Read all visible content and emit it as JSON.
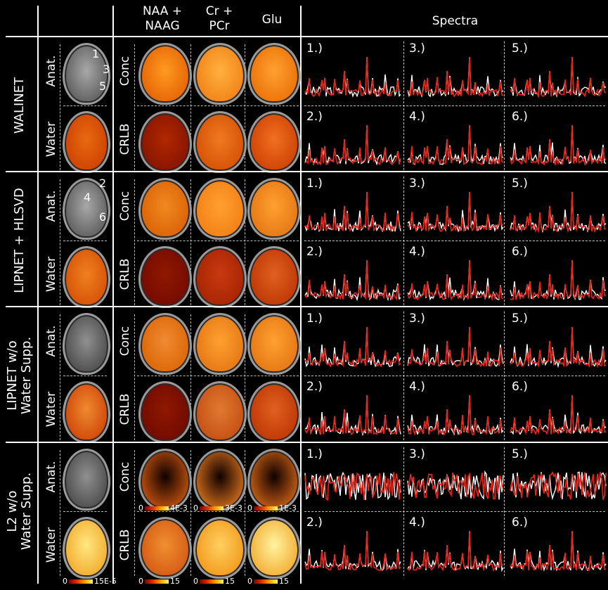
{
  "header": {
    "metabolites": [
      "NAA +\nNAAG",
      "Cr +\nPCr",
      "Glu"
    ],
    "spectra": "Spectra"
  },
  "rows": [
    {
      "name": "WALINET",
      "anat": "Anat.",
      "water": "Water",
      "conc": "Conc",
      "crlb": "CRLB",
      "markers": [
        "1",
        "3",
        "5"
      ],
      "spectra": [
        "1.)",
        "3.)",
        "5.)",
        "2.)",
        "4.)",
        "6.)"
      ]
    },
    {
      "name": "LIPNET + HLSVD",
      "anat": "Anat.",
      "water": "Water",
      "conc": "Conc",
      "crlb": "CRLB",
      "markers": [
        "2",
        "4",
        "6"
      ],
      "spectra": [
        "1.)",
        "3.)",
        "5.)",
        "2.)",
        "4.)",
        "6.)"
      ]
    },
    {
      "name": "LIPNET w/o\nWater Supp.",
      "anat": "Anat.",
      "water": "Water",
      "conc": "Conc",
      "crlb": "CRLB",
      "spectra": [
        "1.)",
        "3.)",
        "5.)",
        "2.)",
        "4.)",
        "6.)"
      ]
    },
    {
      "name": "L2 w/o\nWater Supp.",
      "anat": "Anat.",
      "water": "Water",
      "conc": "Conc",
      "crlb": "CRLB",
      "spectra": [
        "1.)",
        "3.)",
        "5.)",
        "2.)",
        "4.)",
        "6.)"
      ]
    }
  ],
  "colorbars": {
    "water": {
      "min": "0",
      "max": "15E-5"
    },
    "conc": [
      {
        "min": "0",
        "max": "4E-3"
      },
      {
        "min": "0",
        "max": "3E-3"
      },
      {
        "min": "0",
        "max": "1E-3"
      }
    ],
    "crlb": [
      {
        "min": "0",
        "max": "15"
      },
      {
        "min": "0",
        "max": "15"
      },
      {
        "min": "0",
        "max": "15"
      }
    ]
  },
  "colors": {
    "line_gray": "#ffffff",
    "line_fit": "#e8251b",
    "colormap": [
      "#3a0000",
      "#8a0a00",
      "#d23a00",
      "#f08a10",
      "#ffd23a",
      "#fff59a"
    ]
  }
}
